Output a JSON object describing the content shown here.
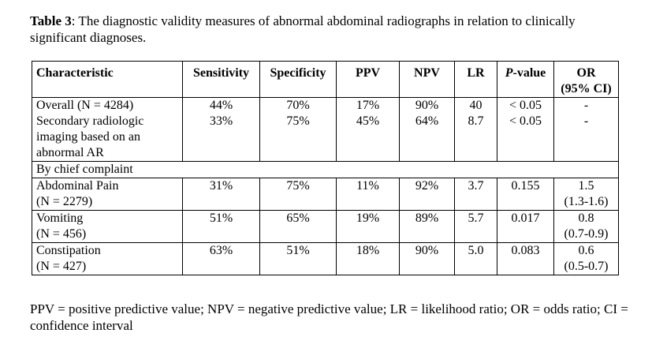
{
  "caption": {
    "label": "Table 3",
    "text": ": The diagnostic validity measures of abnormal abdominal radiographs in relation to clinically significant diagnoses."
  },
  "table": {
    "headers": {
      "characteristic": "Characteristic",
      "sensitivity": "Sensitivity",
      "specificity": "Specificity",
      "ppv": "PPV",
      "npv": "NPV",
      "lr": "LR",
      "pvalue_p": "P",
      "pvalue_rest": "-value",
      "or_line1": "OR",
      "or_line2": "(95% CI)"
    },
    "rows": [
      {
        "characteristic": [
          "Overall (N = 4284)"
        ],
        "sensitivity": "44%",
        "specificity": "70%",
        "ppv": "17%",
        "npv": "90%",
        "lr": "40",
        "pvalue": "< 0.05",
        "or": [
          "-"
        ]
      },
      {
        "characteristic": [
          "Secondary radiologic",
          "imaging based on an",
          "abnormal AR"
        ],
        "sensitivity": "33%",
        "specificity": "75%",
        "ppv": "45%",
        "npv": "64%",
        "lr": "8.7",
        "pvalue": "< 0.05",
        "or": [
          "-"
        ]
      }
    ],
    "subheading": "By chief complaint",
    "complaint_rows": [
      {
        "characteristic": [
          "Abdominal Pain",
          "(N = 2279)"
        ],
        "sensitivity": "31%",
        "specificity": "75%",
        "ppv": "11%",
        "npv": "92%",
        "lr": "3.7",
        "pvalue": "0.155",
        "or": [
          "1.5",
          "(1.3-1.6)"
        ]
      },
      {
        "characteristic": [
          "Vomiting",
          "(N = 456)"
        ],
        "sensitivity": "51%",
        "specificity": "65%",
        "ppv": "19%",
        "npv": "89%",
        "lr": "5.7",
        "pvalue": "0.017",
        "or": [
          "0.8",
          "(0.7-0.9)"
        ]
      },
      {
        "characteristic": [
          "Constipation",
          "(N = 427)"
        ],
        "sensitivity": "63%",
        "specificity": "51%",
        "ppv": "18%",
        "npv": "90%",
        "lr": "5.0",
        "pvalue": "0.083",
        "or": [
          "0.6",
          "(0.5-0.7)"
        ]
      }
    ]
  },
  "footnote": "PPV = positive predictive value; NPV = negative predictive value; LR = likelihood ratio; OR = odds ratio; CI = confidence interval"
}
